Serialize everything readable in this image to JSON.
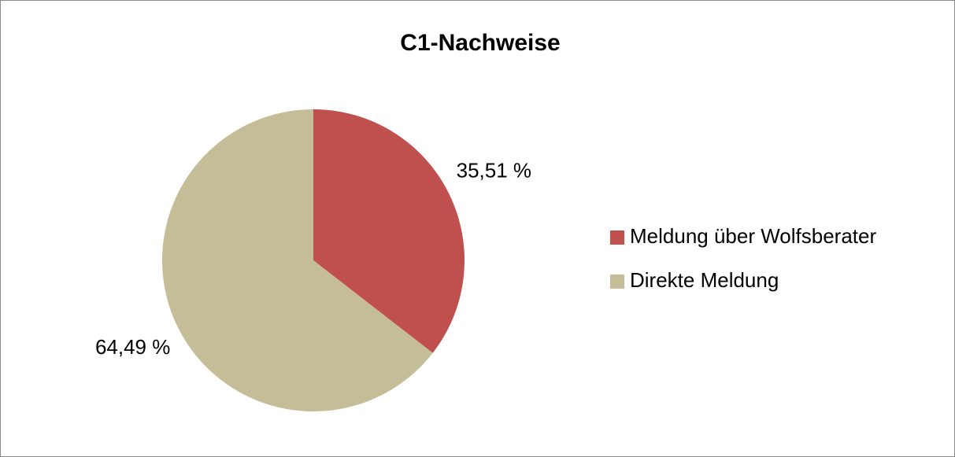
{
  "chart_data": {
    "type": "pie",
    "title": "C1-Nachweise",
    "categories": [
      "Meldung über Wolfsberater",
      "Direkte Meldung"
    ],
    "values": [
      35.51,
      64.49
    ],
    "value_labels": [
      "35,51 %",
      "64,49 %"
    ],
    "colors": [
      "#c0504d",
      "#c4bd97"
    ],
    "legend": "right"
  }
}
